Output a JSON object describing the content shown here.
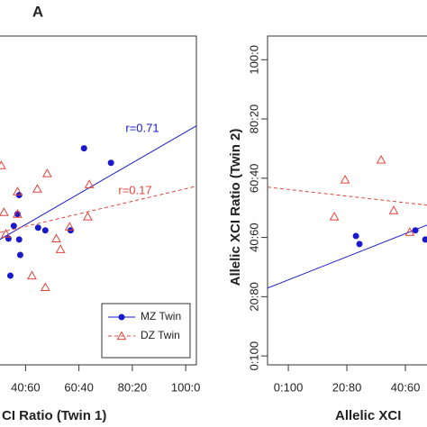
{
  "chart_data": [
    {
      "type": "scatter",
      "label": "A",
      "x_label": "CI Ratio (Twin 1)",
      "xlim": [
        -4,
        104
      ],
      "ylim": [
        -3,
        108
      ],
      "xticks": [
        {
          "value": 40,
          "label": "40:60"
        },
        {
          "value": 60,
          "label": "60:40"
        },
        {
          "value": 80,
          "label": "80:20"
        },
        {
          "value": 100,
          "label": "100:0"
        }
      ],
      "legend": "bottom-right",
      "series": [
        {
          "name": "MZ Twin",
          "color": "#1a1acc",
          "marker": "circle",
          "line": "solid",
          "r_label": "r=0.71",
          "x": [
            61.9,
            72.0,
            37.6,
            37.0,
            35.6,
            44.7,
            47.4,
            56.9,
            37.6,
            33.6,
            38.0,
            34.3
          ],
          "y": [
            70.1,
            65.2,
            54.3,
            47.9,
            43.9,
            43.3,
            42.4,
            42.4,
            39.3,
            39.6,
            34.1,
            27.1
          ],
          "fit_x": [
            -4,
            104
          ],
          "fit_y": [
            21.4,
            77.7
          ]
        },
        {
          "name": "DZ Twin",
          "color": "#e0453a",
          "marker": "triangle",
          "line": "dashed",
          "r_label": "r=0.17",
          "x": [
            30.9,
            48.1,
            44.4,
            37.0,
            31.9,
            37.0,
            63.3,
            63.9,
            56.5,
            51.5,
            53.1,
            42.4,
            47.4,
            32.6
          ],
          "y": [
            64.3,
            61.6,
            56.4,
            55.5,
            48.5,
            47.9,
            47.0,
            57.9,
            43.6,
            39.6,
            36.0,
            27.1,
            23.2,
            41.2
          ],
          "fit_x": [
            -4,
            104
          ],
          "fit_y": [
            34.4,
            57.3
          ]
        }
      ]
    },
    {
      "type": "scatter",
      "x_label": "Allelic XCI",
      "y_label": "Allelic XCI Ratio (Twin 2)",
      "xlim": [
        -7.1,
        104
      ],
      "ylim": [
        -3,
        108
      ],
      "xticks": [
        {
          "value": 0,
          "label": "0:100"
        },
        {
          "value": 20,
          "label": "20:80"
        },
        {
          "value": 40,
          "label": "40:60"
        }
      ],
      "yticks": [
        {
          "value": 0,
          "label": "0:100"
        },
        {
          "value": 20,
          "label": "20:80"
        },
        {
          "value": 40,
          "label": "40:60"
        },
        {
          "value": 60,
          "label": "60:40"
        },
        {
          "value": 80,
          "label": "80:20"
        },
        {
          "value": 100,
          "label": "100:0"
        }
      ],
      "series": [
        {
          "color": "#1a1acc",
          "marker": "circle",
          "line": "solid",
          "x": [
            23.1,
            24.3,
            43.4,
            46.8
          ],
          "y": [
            40.5,
            37.8,
            42.4,
            39.3
          ],
          "fit_x": [
            -7.1,
            104
          ],
          "fit_y": [
            22.9,
            66.3
          ]
        },
        {
          "color": "#e0453a",
          "marker": "triangle",
          "line": "dashed",
          "x": [
            19.4,
            31.7,
            15.7,
            36.0,
            41.5
          ],
          "y": [
            59.5,
            66.2,
            47.0,
            49.1,
            41.8
          ],
          "fit_x": [
            -7.1,
            104
          ],
          "fit_y": [
            57.0,
            44.6
          ]
        }
      ]
    }
  ]
}
